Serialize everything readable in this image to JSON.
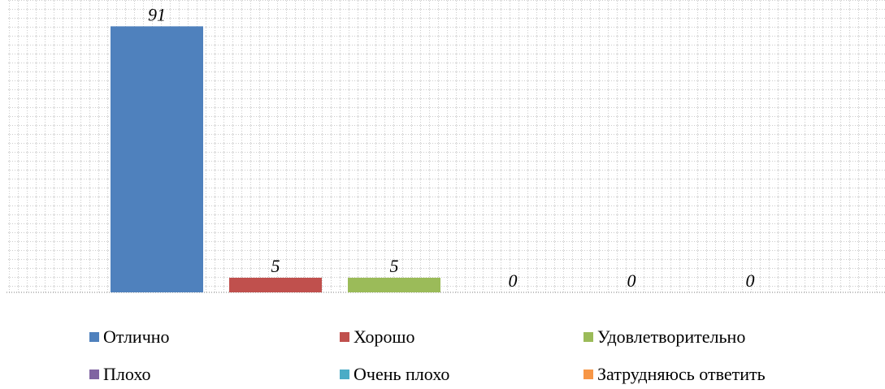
{
  "chart_data": {
    "type": "bar",
    "title": "",
    "xlabel": "",
    "ylabel": "",
    "ylim": [
      0,
      100
    ],
    "grid": true,
    "legend_position": "bottom",
    "data_labels": true,
    "categories": [
      "Отлично",
      "Хорошо",
      "Удовлетворительно",
      "Плохо",
      "Очень плохо",
      "Затрудняюсь ответить"
    ],
    "values": [
      91,
      5,
      5,
      0,
      0,
      0
    ],
    "colors": [
      "#4F81BD",
      "#C0504D",
      "#9BBB59",
      "#8064A2",
      "#4BACC6",
      "#F79646"
    ]
  }
}
